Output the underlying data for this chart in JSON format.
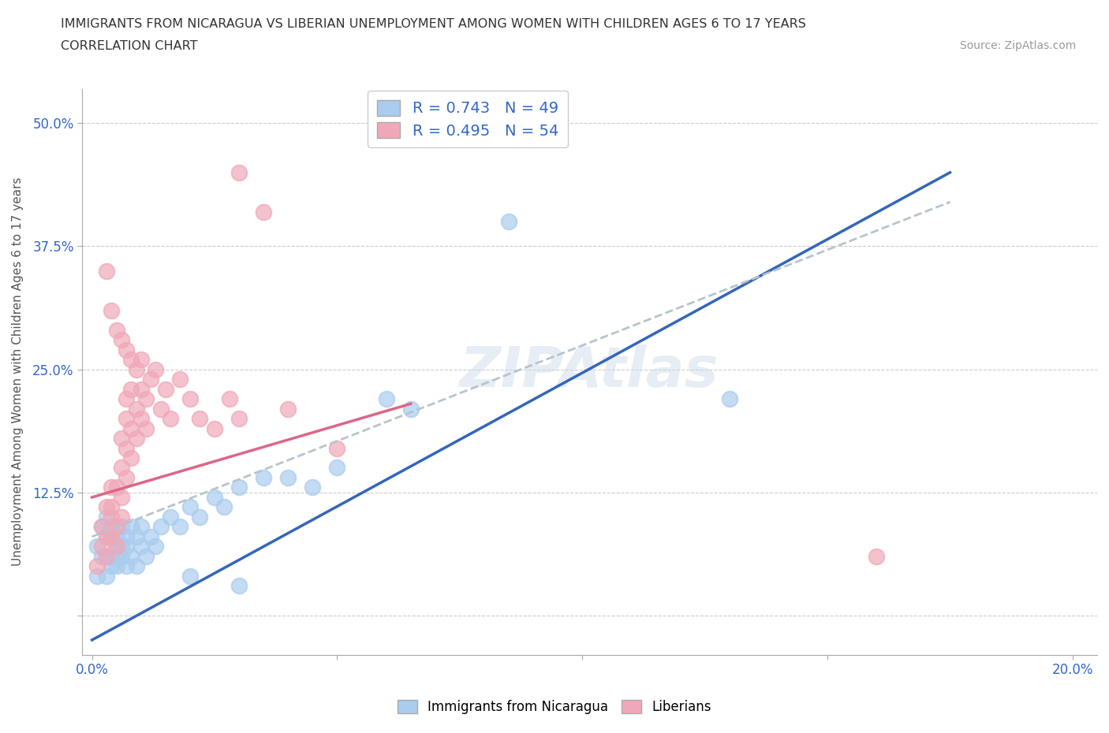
{
  "title_line1": "IMMIGRANTS FROM NICARAGUA VS LIBERIAN UNEMPLOYMENT AMONG WOMEN WITH CHILDREN AGES 6 TO 17 YEARS",
  "title_line2": "CORRELATION CHART",
  "source": "Source: ZipAtlas.com",
  "ylabel": "Unemployment Among Women with Children Ages 6 to 17 years",
  "xlim": [
    -0.002,
    0.205
  ],
  "ylim": [
    -0.04,
    0.535
  ],
  "yticks": [
    0.0,
    0.125,
    0.25,
    0.375,
    0.5
  ],
  "yticklabels": [
    "",
    "12.5%",
    "25.0%",
    "37.5%",
    "50.0%"
  ],
  "xtick_positions": [
    0.0,
    0.05,
    0.1,
    0.15,
    0.2
  ],
  "xticklabels": [
    "0.0%",
    "",
    "",
    "",
    "20.0%"
  ],
  "legend1_label": "R = 0.743   N = 49",
  "legend2_label": "R = 0.495   N = 54",
  "watermark": "ZIPAtlas",
  "blue_color": "#aaccee",
  "pink_color": "#f0a8b8",
  "blue_line_color": "#3366bb",
  "pink_line_color": "#dd6688",
  "gray_line_color": "#b8c4cc",
  "text_color": "#3366cc",
  "blue_scatter": [
    [
      0.001,
      0.04
    ],
    [
      0.001,
      0.07
    ],
    [
      0.002,
      0.09
    ],
    [
      0.002,
      0.06
    ],
    [
      0.003,
      0.1
    ],
    [
      0.003,
      0.08
    ],
    [
      0.003,
      0.06
    ],
    [
      0.003,
      0.04
    ],
    [
      0.004,
      0.08
    ],
    [
      0.004,
      0.06
    ],
    [
      0.004,
      0.09
    ],
    [
      0.004,
      0.05
    ],
    [
      0.005,
      0.07
    ],
    [
      0.005,
      0.05
    ],
    [
      0.005,
      0.08
    ],
    [
      0.005,
      0.06
    ],
    [
      0.006,
      0.07
    ],
    [
      0.006,
      0.09
    ],
    [
      0.006,
      0.06
    ],
    [
      0.007,
      0.08
    ],
    [
      0.007,
      0.05
    ],
    [
      0.007,
      0.07
    ],
    [
      0.008,
      0.09
    ],
    [
      0.008,
      0.06
    ],
    [
      0.009,
      0.08
    ],
    [
      0.009,
      0.05
    ],
    [
      0.01,
      0.07
    ],
    [
      0.01,
      0.09
    ],
    [
      0.011,
      0.06
    ],
    [
      0.012,
      0.08
    ],
    [
      0.013,
      0.07
    ],
    [
      0.014,
      0.09
    ],
    [
      0.016,
      0.1
    ],
    [
      0.018,
      0.09
    ],
    [
      0.02,
      0.11
    ],
    [
      0.022,
      0.1
    ],
    [
      0.025,
      0.12
    ],
    [
      0.027,
      0.11
    ],
    [
      0.03,
      0.13
    ],
    [
      0.035,
      0.14
    ],
    [
      0.04,
      0.14
    ],
    [
      0.045,
      0.13
    ],
    [
      0.05,
      0.15
    ],
    [
      0.06,
      0.22
    ],
    [
      0.065,
      0.21
    ],
    [
      0.085,
      0.4
    ],
    [
      0.13,
      0.22
    ],
    [
      0.02,
      0.04
    ],
    [
      0.03,
      0.03
    ]
  ],
  "pink_scatter": [
    [
      0.001,
      0.05
    ],
    [
      0.002,
      0.07
    ],
    [
      0.002,
      0.09
    ],
    [
      0.003,
      0.08
    ],
    [
      0.003,
      0.11
    ],
    [
      0.003,
      0.06
    ],
    [
      0.004,
      0.1
    ],
    [
      0.004,
      0.08
    ],
    [
      0.004,
      0.13
    ],
    [
      0.004,
      0.11
    ],
    [
      0.005,
      0.09
    ],
    [
      0.005,
      0.13
    ],
    [
      0.005,
      0.07
    ],
    [
      0.006,
      0.12
    ],
    [
      0.006,
      0.1
    ],
    [
      0.006,
      0.15
    ],
    [
      0.006,
      0.18
    ],
    [
      0.007,
      0.14
    ],
    [
      0.007,
      0.17
    ],
    [
      0.007,
      0.2
    ],
    [
      0.007,
      0.22
    ],
    [
      0.008,
      0.16
    ],
    [
      0.008,
      0.19
    ],
    [
      0.008,
      0.23
    ],
    [
      0.009,
      0.18
    ],
    [
      0.009,
      0.21
    ],
    [
      0.01,
      0.2
    ],
    [
      0.01,
      0.23
    ],
    [
      0.01,
      0.26
    ],
    [
      0.011,
      0.22
    ],
    [
      0.011,
      0.19
    ],
    [
      0.012,
      0.24
    ],
    [
      0.013,
      0.25
    ],
    [
      0.014,
      0.21
    ],
    [
      0.015,
      0.23
    ],
    [
      0.016,
      0.2
    ],
    [
      0.018,
      0.24
    ],
    [
      0.02,
      0.22
    ],
    [
      0.022,
      0.2
    ],
    [
      0.025,
      0.19
    ],
    [
      0.028,
      0.22
    ],
    [
      0.03,
      0.2
    ],
    [
      0.04,
      0.21
    ],
    [
      0.05,
      0.17
    ],
    [
      0.03,
      0.45
    ],
    [
      0.035,
      0.41
    ],
    [
      0.16,
      0.06
    ],
    [
      0.003,
      0.35
    ],
    [
      0.004,
      0.31
    ],
    [
      0.005,
      0.29
    ],
    [
      0.006,
      0.28
    ],
    [
      0.007,
      0.27
    ],
    [
      0.008,
      0.26
    ],
    [
      0.009,
      0.25
    ]
  ],
  "blue_line": [
    [
      0.0,
      -0.025
    ],
    [
      0.175,
      0.45
    ]
  ],
  "pink_line": [
    [
      0.0,
      0.12
    ],
    [
      0.065,
      0.215
    ]
  ],
  "gray_line": [
    [
      0.0,
      0.08
    ],
    [
      0.175,
      0.42
    ]
  ]
}
